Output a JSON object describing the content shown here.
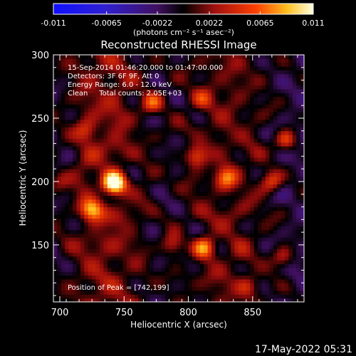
{
  "chart_data": {
    "type": "heatmap",
    "title": "Reconstructed RHESSI Image",
    "xlabel": "Heliocentric X (arcsec)",
    "ylabel": "Heliocentric Y (arcsec)",
    "xlim": [
      695,
      890
    ],
    "ylim": [
      105,
      300
    ],
    "xticks": [
      700,
      750,
      800,
      850
    ],
    "yticks": [
      150,
      200,
      250,
      300
    ],
    "colorbar": {
      "min": -0.011,
      "max": 0.011,
      "ticks": [
        "-0.011",
        "-0.0065",
        "-0.0022",
        "0.0022",
        "0.0065",
        "0.011"
      ],
      "tick_values": [
        -0.011,
        -0.0065,
        -0.0022,
        0.0022,
        0.0065,
        0.011
      ],
      "label": "(photons cm⁻² s⁻¹ asec⁻²)"
    },
    "annotations": [
      "15-Sep-2014 01:46:20.000 to 01:47:00.000",
      "Detectors: 3F 6F 9F, Att 0",
      "Energy Range: 6.0 - 12.0 keV",
      "Clean     Total counts: 2.05E+03"
    ],
    "peak_label": "Position of Peak = [742,199]",
    "peak": [
      742,
      199
    ],
    "sources": [
      {
        "x": 742,
        "y": 199,
        "amp": 1.0
      },
      {
        "x": 725,
        "y": 178,
        "amp": 0.55
      },
      {
        "x": 772,
        "y": 262,
        "amp": 0.45
      },
      {
        "x": 812,
        "y": 148,
        "amp": 0.55
      },
      {
        "x": 829,
        "y": 203,
        "amp": 0.45
      },
      {
        "x": 865,
        "y": 200,
        "amp": 0.45
      },
      {
        "x": 876,
        "y": 233,
        "amp": 0.45
      },
      {
        "x": 811,
        "y": 265,
        "amp": 0.35
      },
      {
        "x": 806,
        "y": 220,
        "amp": 0.4
      },
      {
        "x": 720,
        "y": 240,
        "amp": 0.3
      },
      {
        "x": 788,
        "y": 150,
        "amp": 0.3
      },
      {
        "x": 874,
        "y": 140,
        "amp": 0.35
      },
      {
        "x": 846,
        "y": 117,
        "amp": 0.25
      },
      {
        "x": 700,
        "y": 200,
        "amp": 0.2
      }
    ]
  },
  "timestamp": "17-May-2022 05:31"
}
